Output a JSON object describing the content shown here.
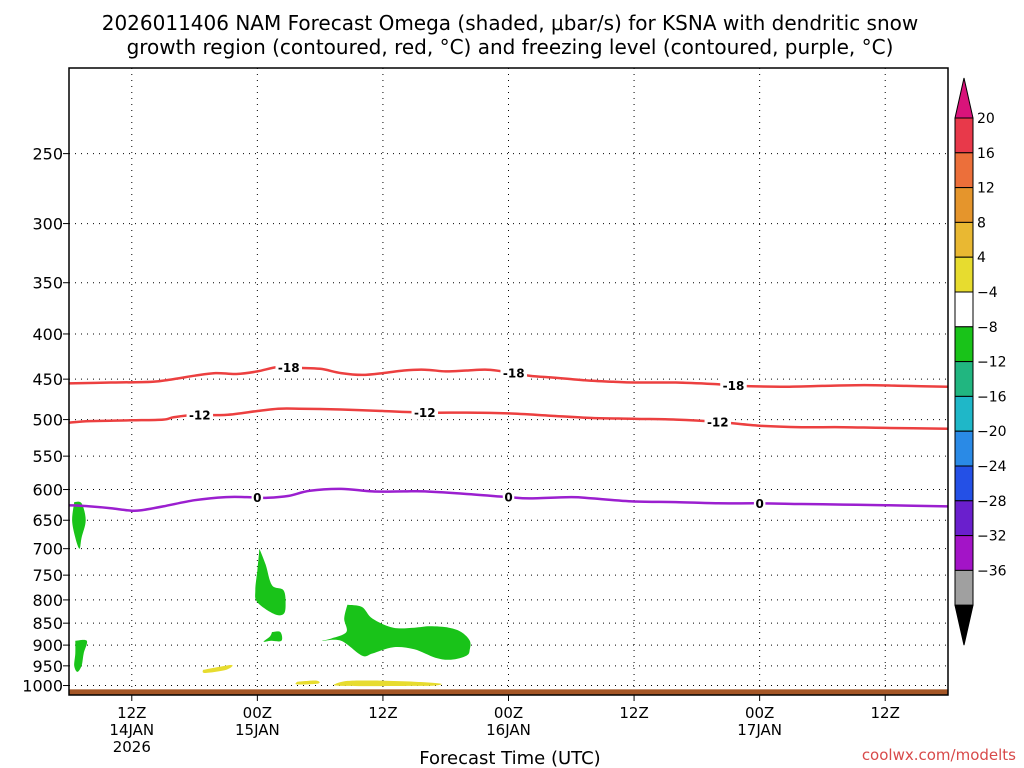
{
  "chart_data": {
    "type": "time-height cross-section",
    "title": {
      "line1": "2026011406 NAM Forecast Omega (shaded, μbar/s) for KSNA with dendritic snow",
      "line2": "growth region (contoured, red, °C) and freezing level (contoured, purple, °C)"
    },
    "xlabel": "Forecast Time (UTC)",
    "credit": "coolwx.com/modelts",
    "x_units": "forecast hours from 2026-01-14 06Z",
    "xlim": [
      0,
      84
    ],
    "x_ticks": [
      {
        "hour": 6,
        "lines": [
          "12Z",
          "14JAN",
          "2026"
        ]
      },
      {
        "hour": 18,
        "lines": [
          "00Z",
          "15JAN"
        ]
      },
      {
        "hour": 30,
        "lines": [
          "12Z"
        ]
      },
      {
        "hour": 42,
        "lines": [
          "00Z",
          "16JAN"
        ]
      },
      {
        "hour": 54,
        "lines": [
          "12Z"
        ]
      },
      {
        "hour": 66,
        "lines": [
          "00Z",
          "17JAN"
        ]
      },
      {
        "hour": 78,
        "lines": [
          "12Z"
        ]
      }
    ],
    "y_units": "hPa",
    "ylim": [
      1025,
      200
    ],
    "y_ticks": [
      250,
      300,
      350,
      400,
      450,
      500,
      550,
      600,
      650,
      700,
      750,
      800,
      850,
      900,
      950,
      1000
    ],
    "grid": true,
    "colorbar": {
      "ticks": [
        20,
        16,
        12,
        8,
        4,
        -4,
        -8,
        -12,
        -16,
        -20,
        -24,
        -28,
        -32,
        -36
      ],
      "segments": [
        "#e8394a",
        "#ec6f3a",
        "#e5952c",
        "#e9b832",
        "#e7dc2f",
        "#ffffff",
        "#19c319",
        "#21b680",
        "#1fb7c8",
        "#2a8ae6",
        "#2450e6",
        "#6a1fcd",
        "#a314c7",
        "#a0a0a0"
      ],
      "top_arrow_color": "#d9137a",
      "bottom_arrow_color": "#000000"
    },
    "contours": [
      {
        "label": "-18",
        "color": "#ec4040",
        "labels_at_hours": [
          21,
          42.5,
          63.5
        ],
        "points": [
          [
            0,
            455
          ],
          [
            4,
            454
          ],
          [
            8,
            453
          ],
          [
            10,
            450
          ],
          [
            12,
            446
          ],
          [
            14,
            443
          ],
          [
            16,
            444
          ],
          [
            18,
            441
          ],
          [
            20,
            436
          ],
          [
            22,
            437
          ],
          [
            24,
            438
          ],
          [
            26,
            443
          ],
          [
            28,
            445
          ],
          [
            30,
            443
          ],
          [
            32,
            440
          ],
          [
            34,
            439
          ],
          [
            36,
            441
          ],
          [
            38,
            440
          ],
          [
            40,
            439
          ],
          [
            42,
            442
          ],
          [
            44,
            446
          ],
          [
            46,
            448
          ],
          [
            48,
            450
          ],
          [
            50,
            452
          ],
          [
            52,
            453
          ],
          [
            54,
            454
          ],
          [
            58,
            454
          ],
          [
            62,
            456
          ],
          [
            64,
            458
          ],
          [
            68,
            459
          ],
          [
            72,
            458
          ],
          [
            76,
            457
          ],
          [
            80,
            458
          ],
          [
            84,
            459
          ]
        ]
      },
      {
        "label": "-12",
        "color": "#ec4040",
        "labels_at_hours": [
          12.5,
          34,
          62
        ],
        "points": [
          [
            0,
            504
          ],
          [
            2,
            502
          ],
          [
            6,
            501
          ],
          [
            9,
            500
          ],
          [
            10,
            497
          ],
          [
            12,
            494
          ],
          [
            15,
            494
          ],
          [
            18,
            489
          ],
          [
            20,
            486
          ],
          [
            22,
            486
          ],
          [
            26,
            487
          ],
          [
            30,
            489
          ],
          [
            34,
            491
          ],
          [
            38,
            491
          ],
          [
            42,
            492
          ],
          [
            46,
            495
          ],
          [
            50,
            498
          ],
          [
            54,
            499
          ],
          [
            58,
            500
          ],
          [
            62,
            503
          ],
          [
            66,
            508
          ],
          [
            70,
            510
          ],
          [
            74,
            510
          ],
          [
            78,
            511
          ],
          [
            84,
            512
          ]
        ]
      },
      {
        "label": "0",
        "color": "#9b1fcf",
        "labels_at_hours": [
          18,
          42,
          66
        ],
        "points": [
          [
            0,
            625
          ],
          [
            2,
            627
          ],
          [
            4,
            630
          ],
          [
            6,
            634
          ],
          [
            7,
            633
          ],
          [
            9,
            627
          ],
          [
            12,
            617
          ],
          [
            15,
            612
          ],
          [
            17,
            612
          ],
          [
            19,
            613
          ],
          [
            21,
            610
          ],
          [
            23,
            602
          ],
          [
            26,
            599
          ],
          [
            29,
            603
          ],
          [
            32,
            603
          ],
          [
            34,
            603
          ],
          [
            38,
            607
          ],
          [
            42,
            612
          ],
          [
            44,
            614
          ],
          [
            48,
            612
          ],
          [
            50,
            614
          ],
          [
            54,
            619
          ],
          [
            58,
            620
          ],
          [
            62,
            622
          ],
          [
            66,
            622
          ],
          [
            70,
            623
          ],
          [
            74,
            624
          ],
          [
            78,
            625
          ],
          [
            84,
            627
          ]
        ]
      }
    ],
    "omega_shading": [
      {
        "color": "#19c319",
        "range": "-8 to -4",
        "points": [
          [
            0.5,
            620
          ],
          [
            1.2,
            622
          ],
          [
            1.6,
            650
          ],
          [
            1.2,
            680
          ],
          [
            1.0,
            700
          ],
          [
            0.6,
            680
          ],
          [
            0.3,
            650
          ]
        ]
      },
      {
        "color": "#19c319",
        "range": "-8 to -4",
        "points": [
          [
            0.6,
            890
          ],
          [
            1.7,
            890
          ],
          [
            1.4,
            920
          ],
          [
            1.2,
            950
          ],
          [
            0.8,
            965
          ],
          [
            0.5,
            950
          ],
          [
            0.6,
            920
          ]
        ]
      },
      {
        "color": "#19c319",
        "range": "-8 to -4",
        "points": [
          [
            18.2,
            700
          ],
          [
            18.8,
            730
          ],
          [
            19.4,
            770
          ],
          [
            20.5,
            780
          ],
          [
            20.7,
            810
          ],
          [
            20.5,
            830
          ],
          [
            19.6,
            830
          ],
          [
            18.0,
            805
          ],
          [
            17.8,
            780
          ],
          [
            18.0,
            740
          ]
        ]
      },
      {
        "color": "#19c319",
        "range": "-8 to -4",
        "points": [
          [
            19.4,
            870
          ],
          [
            20.2,
            870
          ],
          [
            20.3,
            890
          ],
          [
            19.3,
            890
          ],
          [
            18.6,
            892
          ],
          [
            19.2,
            880
          ]
        ]
      },
      {
        "color": "#19c319",
        "range": "-8 to -4",
        "points": [
          [
            26.6,
            810
          ],
          [
            28.0,
            815
          ],
          [
            29.0,
            840
          ],
          [
            31.0,
            860
          ],
          [
            33.0,
            860
          ],
          [
            34.5,
            857
          ],
          [
            36.3,
            860
          ],
          [
            37.5,
            870
          ],
          [
            38.3,
            890
          ],
          [
            38.3,
            910
          ],
          [
            38.0,
            925
          ],
          [
            36.5,
            935
          ],
          [
            35.0,
            930
          ],
          [
            33.0,
            910
          ],
          [
            31.0,
            905
          ],
          [
            29.0,
            920
          ],
          [
            28.0,
            925
          ],
          [
            26.0,
            890
          ],
          [
            24.2,
            890
          ],
          [
            25.0,
            885
          ],
          [
            26.5,
            870
          ],
          [
            26.3,
            840
          ]
        ]
      },
      {
        "color": "#e7dc2f",
        "range": "4 to 8",
        "points": [
          [
            12.8,
            960
          ],
          [
            15.5,
            948
          ],
          [
            15.0,
            960
          ],
          [
            13.0,
            968
          ]
        ]
      },
      {
        "color": "#e7dc2f",
        "range": "4 to 8",
        "points": [
          [
            21.8,
            990
          ],
          [
            23.6,
            987
          ],
          [
            23.8,
            995
          ],
          [
            21.8,
            997
          ]
        ]
      },
      {
        "color": "#e7dc2f",
        "range": "4 to 8",
        "points": [
          [
            25.5,
            995
          ],
          [
            26.6,
            988
          ],
          [
            29.0,
            987
          ],
          [
            33.0,
            990
          ],
          [
            35.5,
            995
          ],
          [
            35.0,
            1000
          ],
          [
            33.0,
            1001
          ],
          [
            26.0,
            1001
          ]
        ]
      }
    ],
    "terrain": {
      "color": "#a45626",
      "top_hpa": 1010
    }
  }
}
